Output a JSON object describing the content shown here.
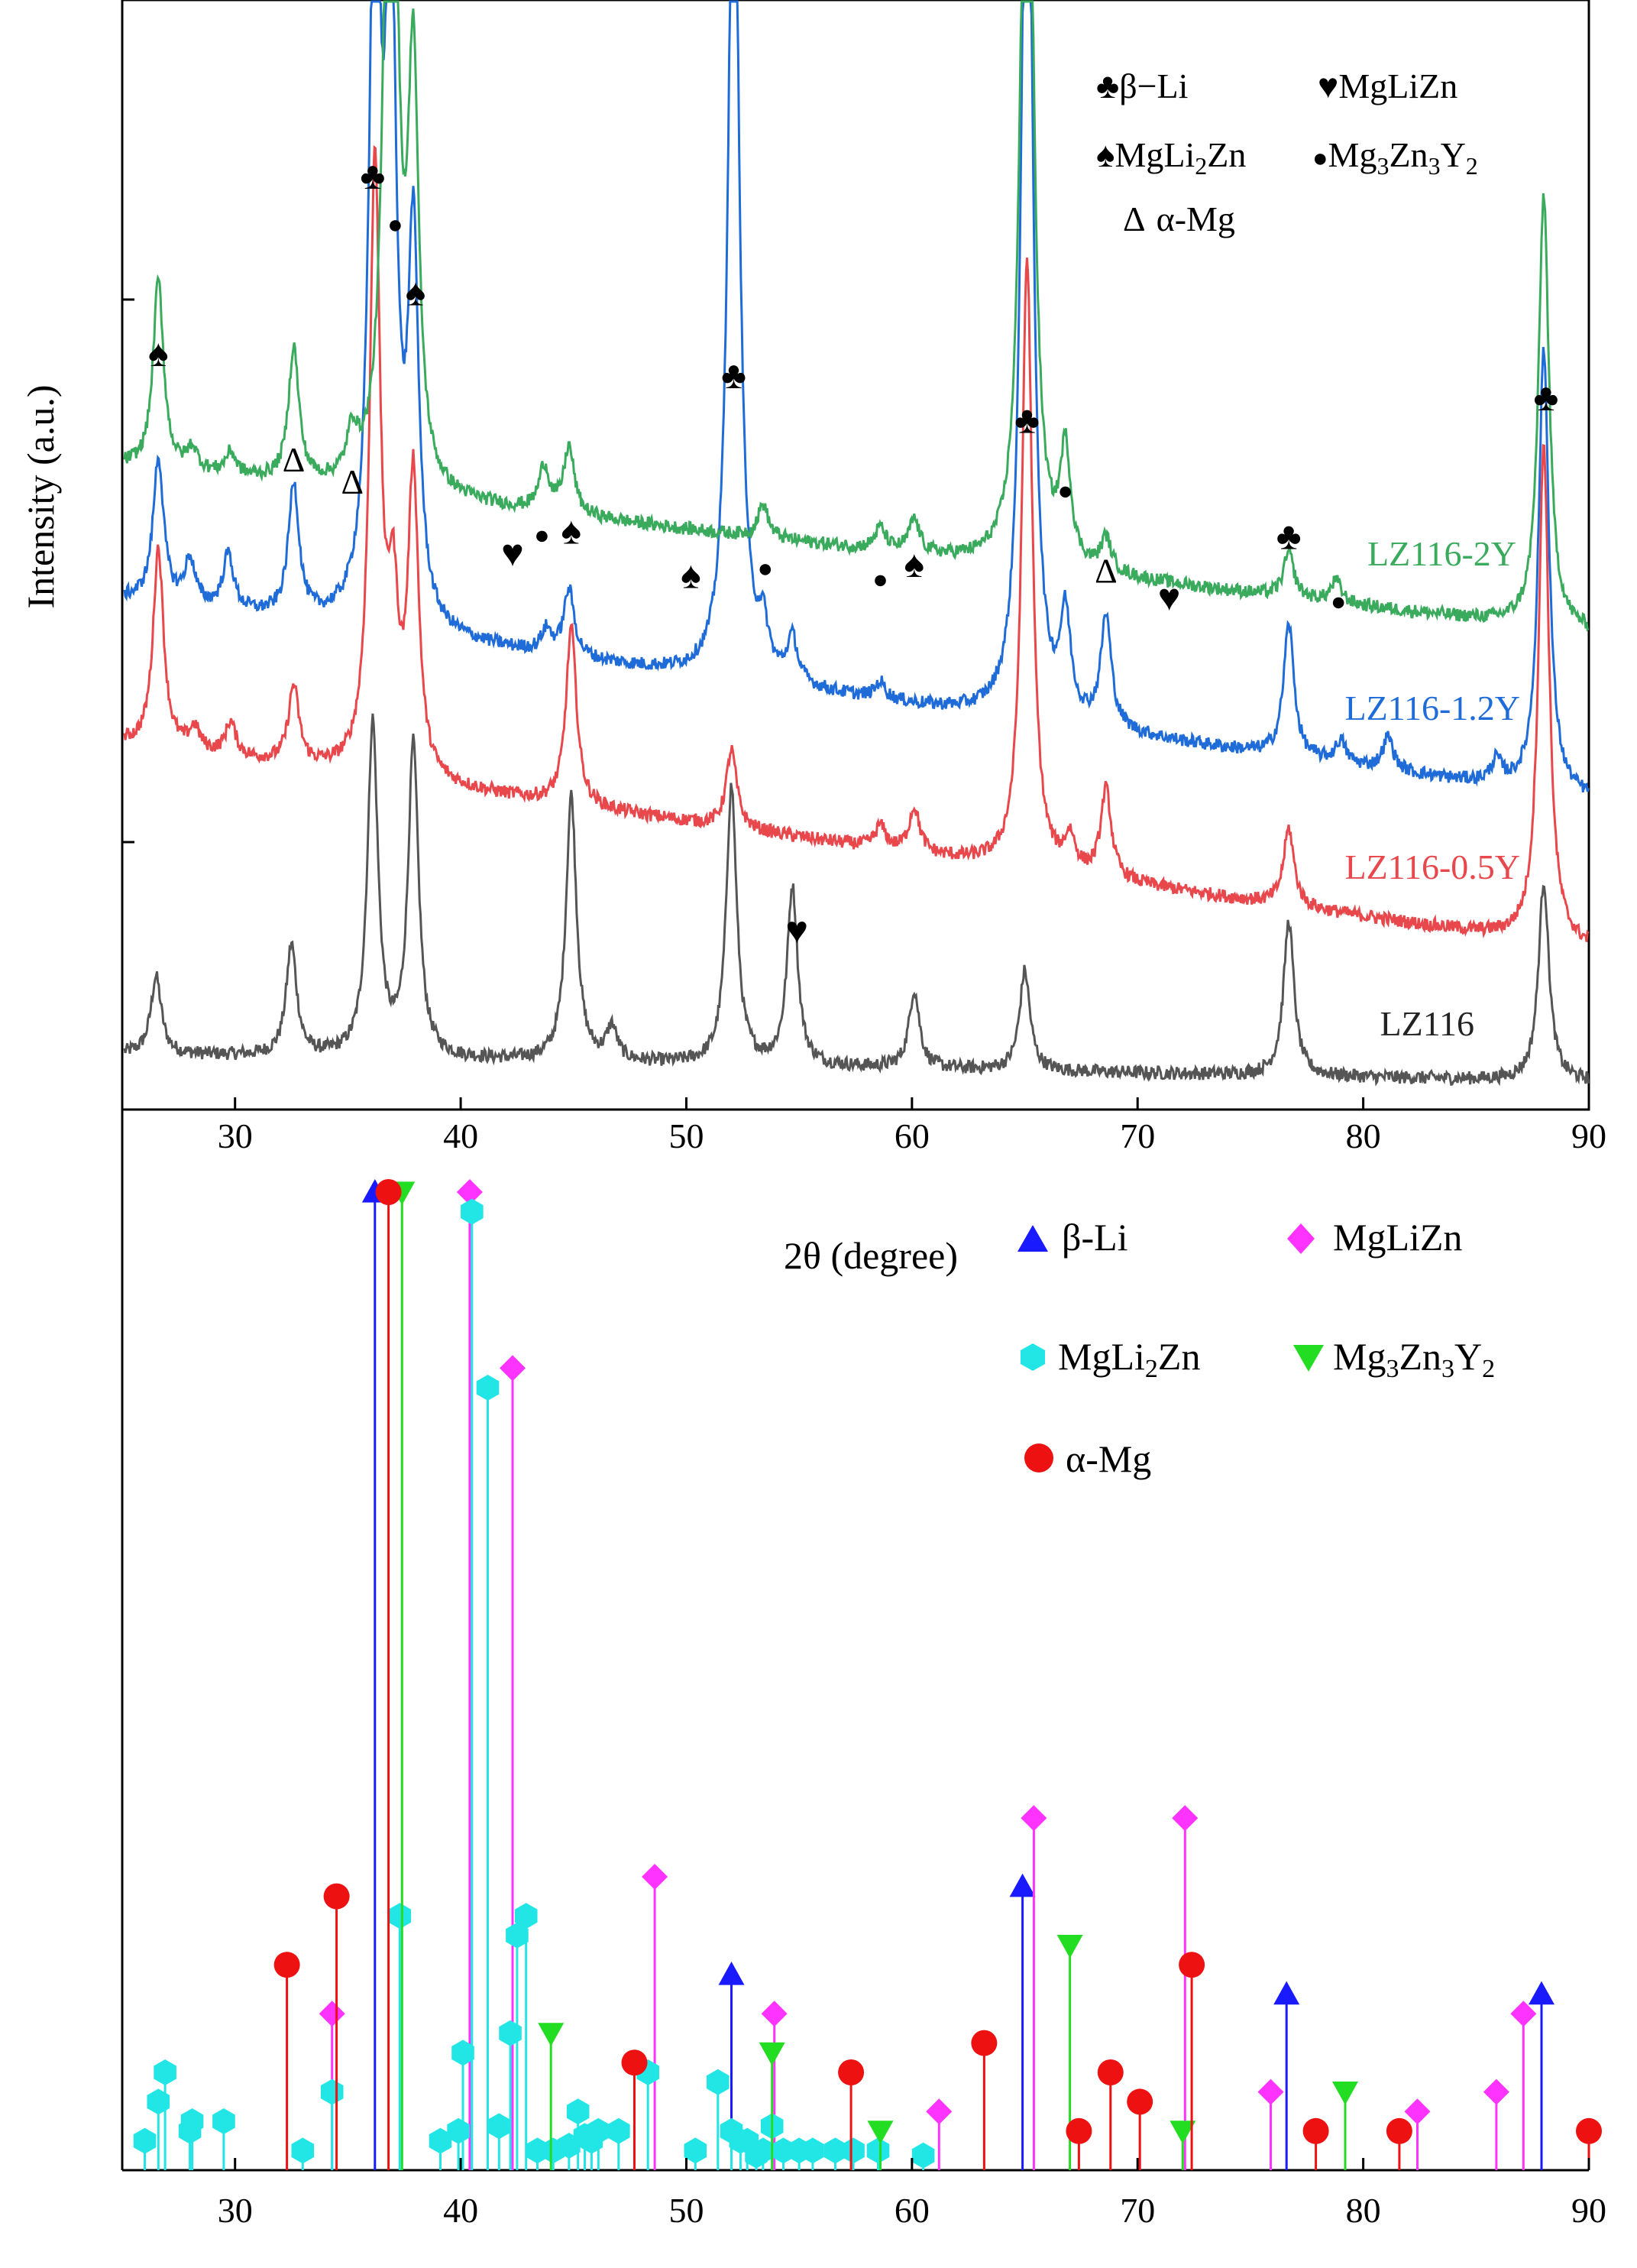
{
  "chart_data": [
    {
      "type": "line",
      "title": "",
      "xlabel": "2θ (degree)",
      "ylabel": "Intensity (a.u.)",
      "xlim": [
        25,
        90
      ],
      "ylim": [
        0,
        100
      ],
      "xticks": [
        30,
        40,
        50,
        60,
        70,
        80,
        90
      ],
      "tick_labels": [
        "30",
        "40",
        "50",
        "60",
        "70",
        "80",
        "90"
      ],
      "grid": false,
      "legend_position": "top-right",
      "legend": {
        "line1": {
          "a_sym": "♣",
          "a_text": "β−Li",
          "b_sym": "♥",
          "b_text": "MgLiZn"
        },
        "line2": {
          "a_sym": "♠",
          "a_text_main": "MgLi",
          "a_text_sub": "2",
          "a_text_tail": "Zn",
          "b_sym": "●",
          "b_text_1": "Mg",
          "b_sub_1": "3",
          "b_text_2": "Zn",
          "b_sub_2": "3",
          "b_text_3": "Y",
          "b_sub_3": "2"
        },
        "line3": {
          "a_sym": "Δ",
          "a_text": "α-Mg"
        }
      },
      "series": [
        {
          "name": "LZ116",
          "color": "#555555",
          "baseline": 5,
          "baseline_end": 2.5,
          "noise": 0.6,
          "peaks": [
            [
              26.5,
              7
            ],
            [
              32.5,
              10
            ],
            [
              36.1,
              30
            ],
            [
              37.9,
              28
            ],
            [
              44.9,
              24
            ],
            [
              46.7,
              3
            ],
            [
              52.0,
              25
            ],
            [
              54.7,
              16
            ],
            [
              60.1,
              7
            ],
            [
              65.0,
              9
            ],
            [
              76.7,
              14
            ],
            [
              88.0,
              18
            ]
          ]
        },
        {
          "name": "LZ116-0.5Y",
          "color": "#e8474c",
          "baseline": 33,
          "baseline_end": 14.5,
          "noise": 0.6,
          "peaks": [
            [
              26.6,
              18
            ],
            [
              28.2,
              2
            ],
            [
              29.8,
              3
            ],
            [
              32.6,
              7
            ],
            [
              36.2,
              55
            ],
            [
              37.0,
              14
            ],
            [
              37.9,
              27
            ],
            [
              44.9,
              16
            ],
            [
              52.0,
              7
            ],
            [
              58.6,
              2
            ],
            [
              60.1,
              4
            ],
            [
              65.1,
              55
            ],
            [
              67.0,
              3
            ],
            [
              68.6,
              8
            ],
            [
              76.7,
              7
            ],
            [
              88.0,
              45
            ]
          ]
        },
        {
          "name": "LZ116-1.2Y",
          "color": "#1f6cd9",
          "baseline": 46,
          "baseline_end": 28,
          "noise": 0.6,
          "peaks": [
            [
              26.6,
              13
            ],
            [
              28.0,
              4
            ],
            [
              29.7,
              5
            ],
            [
              32.6,
              12
            ],
            [
              36.2,
              70
            ],
            [
              36.9,
              60
            ],
            [
              37.9,
              34
            ],
            [
              43.8,
              2
            ],
            [
              44.8,
              6
            ],
            [
              52.1,
              84
            ],
            [
              53.4,
              4
            ],
            [
              54.7,
              4
            ],
            [
              58.6,
              1.5
            ],
            [
              65.1,
              96
            ],
            [
              66.8,
              9
            ],
            [
              68.6,
              10
            ],
            [
              76.7,
              12
            ],
            [
              79.0,
              2
            ],
            [
              81.1,
              3
            ],
            [
              85.9,
              2
            ],
            [
              88.0,
              40
            ]
          ]
        },
        {
          "name": "LZ116-2Y",
          "color": "#3aaa5c",
          "baseline": 58,
          "baseline_end": 43,
          "noise": 0.6,
          "peaks": [
            [
              26.6,
              17
            ],
            [
              28.1,
              2
            ],
            [
              29.8,
              2
            ],
            [
              32.6,
              12
            ],
            [
              35.2,
              4
            ],
            [
              36.9,
              95
            ],
            [
              37.9,
              37
            ],
            [
              43.7,
              4
            ],
            [
              44.8,
              6
            ],
            [
              53.4,
              3
            ],
            [
              58.6,
              2
            ],
            [
              60.1,
              3
            ],
            [
              65.1,
              96
            ],
            [
              66.8,
              10
            ],
            [
              68.6,
              3
            ],
            [
              76.7,
              4
            ],
            [
              78.8,
              2
            ],
            [
              88.0,
              39
            ]
          ]
        }
      ],
      "series_labels": [
        "LZ116-2Y",
        "LZ116-1.2Y",
        "LZ116-0.5Y",
        "LZ116"
      ],
      "annotations": [
        {
          "symbol": "♠",
          "x": 26.6,
          "y": 67
        },
        {
          "symbol": "Δ",
          "x": 32.6,
          "y": 57.5
        },
        {
          "symbol": "Δ",
          "x": 35.2,
          "y": 55.5
        },
        {
          "symbol": "♣",
          "x": 36.1,
          "y": 83
        },
        {
          "symbol": "●",
          "x": 37.1,
          "y": 79
        },
        {
          "symbol": "♠",
          "x": 38.0,
          "y": 72.5
        },
        {
          "symbol": "♥",
          "x": 42.3,
          "y": 49
        },
        {
          "symbol": "●",
          "x": 43.6,
          "y": 51
        },
        {
          "symbol": "♠",
          "x": 44.9,
          "y": 51
        },
        {
          "symbol": "♠",
          "x": 50.2,
          "y": 47
        },
        {
          "symbol": "●",
          "x": 53.5,
          "y": 48
        },
        {
          "symbol": "♣",
          "x": 52.1,
          "y": 65
        },
        {
          "symbol": "♥",
          "x": 54.9,
          "y": 15
        },
        {
          "symbol": "●",
          "x": 58.6,
          "y": 47
        },
        {
          "symbol": "♠",
          "x": 60.1,
          "y": 48
        },
        {
          "symbol": "♣",
          "x": 65.1,
          "y": 61
        },
        {
          "symbol": "●",
          "x": 66.8,
          "y": 55
        },
        {
          "symbol": "Δ",
          "x": 68.6,
          "y": 47.5
        },
        {
          "symbol": "♥",
          "x": 71.4,
          "y": 45
        },
        {
          "symbol": "♣",
          "x": 76.7,
          "y": 50.5
        },
        {
          "symbol": "●",
          "x": 78.9,
          "y": 45
        },
        {
          "symbol": "♣",
          "x": 88.1,
          "y": 63
        }
      ]
    },
    {
      "type": "scatter",
      "title": "",
      "xlabel": "2θ (degree)",
      "ylabel": "",
      "xlim": [
        25,
        90
      ],
      "ylim": [
        0,
        100
      ],
      "xticks": [
        30,
        40,
        50,
        60,
        70,
        80,
        90
      ],
      "tick_labels": [
        "30",
        "40",
        "50",
        "60",
        "70",
        "80",
        "90"
      ],
      "grid": false,
      "legend_position": "top-right",
      "legend": {
        "beta_li": "β-Li",
        "mglizn": "MgLiZn",
        "mgli2zn_main": "MgLi",
        "mgli2zn_sub": "2",
        "mgli2zn_tail": "Zn",
        "mg3zn3y2_1": "Mg",
        "mg3zn3y2_s1": "3",
        "mg3zn3y2_2": "Zn",
        "mg3zn3y2_s2": "3",
        "mg3zn3y2_3": "Y",
        "mg3zn3y2_s3": "2",
        "alpha_mg": "α-Mg"
      },
      "series": [
        {
          "name": "β-Li",
          "color": "#1a1aff",
          "marker": "triangle-up",
          "points": [
            [
              36.2,
              100
            ],
            [
              52.0,
              20
            ],
            [
              64.9,
              29
            ],
            [
              76.6,
              18
            ],
            [
              87.9,
              18
            ]
          ]
        },
        {
          "name": "MgLiZn",
          "color": "#ff33ff",
          "marker": "diamond",
          "points": [
            [
              34.3,
              16
            ],
            [
              40.4,
              100
            ],
            [
              42.3,
              82
            ],
            [
              48.6,
              30
            ],
            [
              53.9,
              16
            ],
            [
              61.2,
              6
            ],
            [
              65.4,
              36
            ],
            [
              72.1,
              36
            ],
            [
              75.9,
              8
            ],
            [
              82.4,
              6
            ],
            [
              85.9,
              8
            ],
            [
              87.1,
              16
            ]
          ]
        },
        {
          "name": "MgLi2Zn",
          "color": "#22e5e5",
          "marker": "hexagon",
          "points": [
            [
              26.0,
              3
            ],
            [
              26.6,
              7
            ],
            [
              26.9,
              10
            ],
            [
              28.0,
              4
            ],
            [
              28.1,
              5
            ],
            [
              29.5,
              5
            ],
            [
              33.0,
              2
            ],
            [
              34.3,
              8
            ],
            [
              37.3,
              26
            ],
            [
              39.1,
              3
            ],
            [
              39.9,
              4
            ],
            [
              40.1,
              12
            ],
            [
              40.5,
              98
            ],
            [
              41.2,
              80
            ],
            [
              41.7,
              4.5
            ],
            [
              42.2,
              14
            ],
            [
              42.5,
              24
            ],
            [
              42.9,
              26
            ],
            [
              43.4,
              2
            ],
            [
              44.1,
              2
            ],
            [
              44.8,
              2.5
            ],
            [
              45.2,
              6
            ],
            [
              45.5,
              3.5
            ],
            [
              45.8,
              3
            ],
            [
              46.1,
              4
            ],
            [
              47.0,
              4
            ],
            [
              48.3,
              10
            ],
            [
              50.4,
              2
            ],
            [
              51.4,
              9
            ],
            [
              52.0,
              4
            ],
            [
              52.4,
              3
            ],
            [
              52.7,
              3
            ],
            [
              53.1,
              1.5
            ],
            [
              53.4,
              2
            ],
            [
              53.8,
              4.5
            ],
            [
              54.3,
              2
            ],
            [
              55.0,
              2
            ],
            [
              55.6,
              2
            ],
            [
              56.6,
              2
            ],
            [
              57.4,
              2
            ],
            [
              58.5,
              2
            ],
            [
              60.5,
              1.5
            ]
          ]
        },
        {
          "name": "Mg3Zn3Y2",
          "color": "#22dd22",
          "marker": "triangle-down",
          "points": [
            [
              37.4,
              100
            ],
            [
              44.0,
              14
            ],
            [
              53.8,
              12
            ],
            [
              58.6,
              4
            ],
            [
              67.0,
              23
            ],
            [
              72.0,
              4
            ],
            [
              79.2,
              8
            ]
          ]
        },
        {
          "name": "α-Mg",
          "color": "#ee1111",
          "marker": "circle",
          "points": [
            [
              32.3,
              21
            ],
            [
              34.5,
              28
            ],
            [
              36.8,
              100
            ],
            [
              47.7,
              11
            ],
            [
              57.3,
              10
            ],
            [
              63.2,
              13
            ],
            [
              67.4,
              4
            ],
            [
              68.8,
              10
            ],
            [
              70.1,
              7
            ],
            [
              72.4,
              21
            ],
            [
              77.9,
              4
            ],
            [
              81.6,
              4
            ],
            [
              90.0,
              4
            ]
          ]
        }
      ]
    }
  ]
}
